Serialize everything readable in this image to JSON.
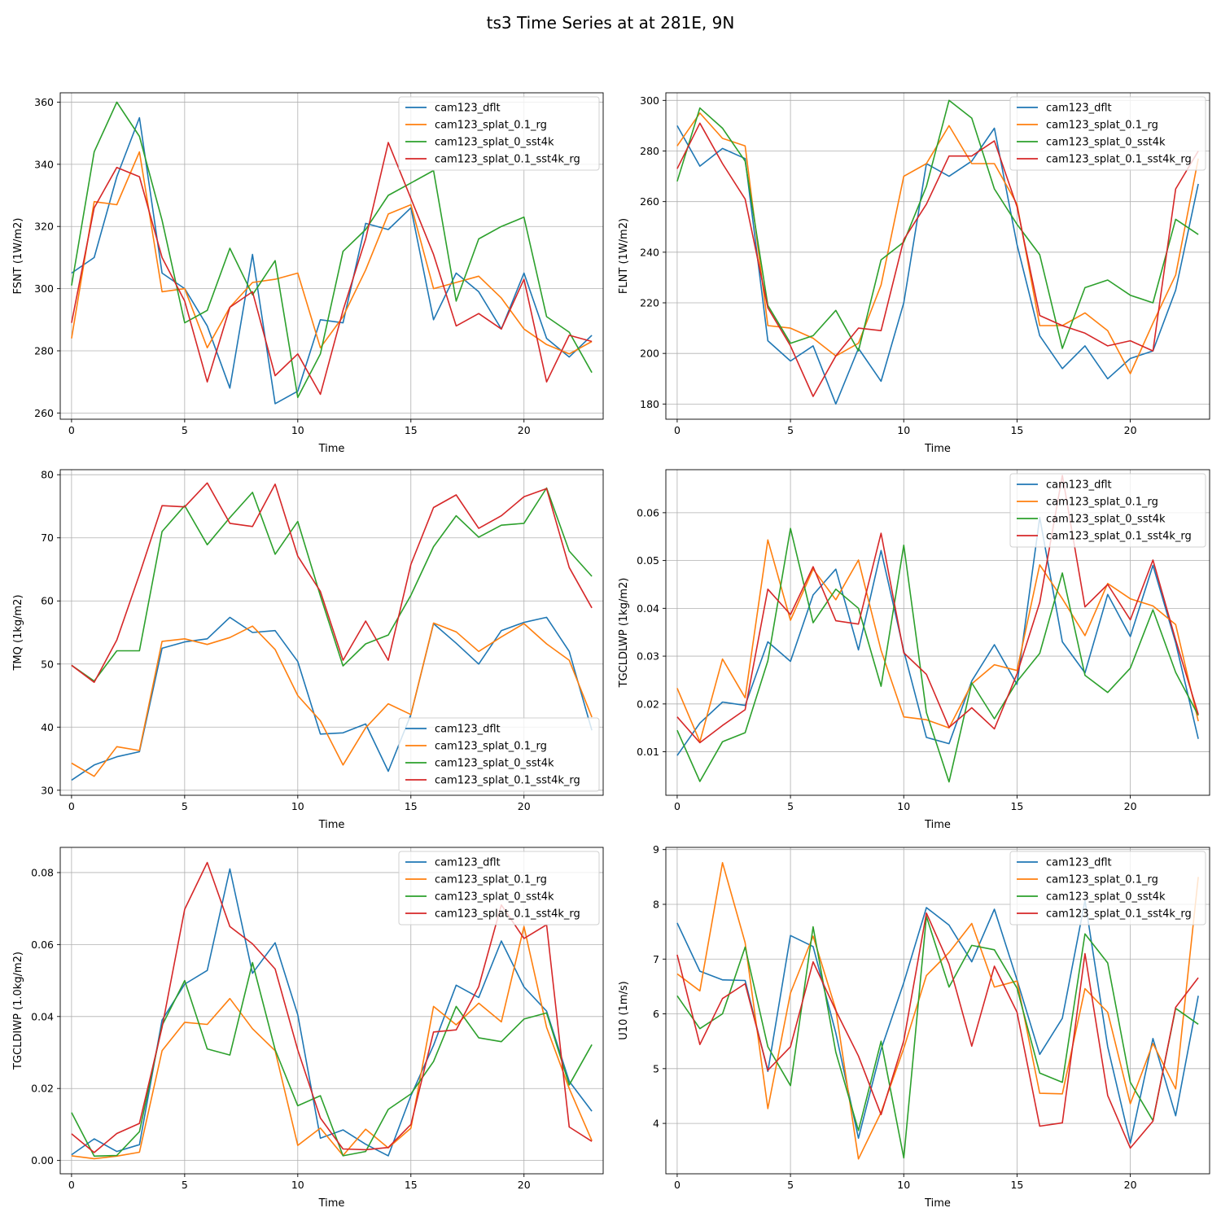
{
  "suptitle": "ts3 Time Series at at 281E, 9N",
  "colors": {
    "cam123_dflt": "#1f77b4",
    "cam123_splat_0.1_rg": "#ff7f0e",
    "cam123_splat_0_sst4k": "#2ca02c",
    "cam123_splat_0.1_sst4k_rg": "#d62728"
  },
  "chart_data": [
    {
      "type": "line",
      "xlabel": "Time",
      "ylabel": "FSNT (1W/m2)",
      "xlim": [
        -0.5,
        23.5
      ],
      "ylim": [
        258,
        363
      ],
      "xticks": [
        0,
        5,
        10,
        15,
        20
      ],
      "yticks": [
        260,
        280,
        300,
        320,
        340,
        360
      ],
      "grid": true,
      "legend": "top-right",
      "series": [
        {
          "name": "cam123_dflt",
          "values": [
            305,
            310,
            336,
            355,
            305,
            300,
            288,
            268,
            311,
            263,
            267,
            290,
            289,
            321,
            319,
            326,
            290,
            305,
            299,
            287,
            305,
            284,
            278,
            285
          ]
        },
        {
          "name": "cam123_splat_0.1_rg",
          "values": [
            284,
            328,
            327,
            344,
            299,
            300,
            281,
            294,
            302,
            303,
            305,
            281,
            291,
            306,
            324,
            327,
            300,
            302,
            304,
            297,
            287,
            282,
            279,
            283
          ]
        },
        {
          "name": "cam123_splat_0_sst4k",
          "values": [
            301,
            344,
            360,
            349,
            322,
            289,
            293,
            313,
            298,
            309,
            265,
            279,
            312,
            319,
            330,
            334,
            338,
            296,
            316,
            320,
            323,
            291,
            286,
            273
          ]
        },
        {
          "name": "cam123_splat_0.1_sst4k_rg",
          "values": [
            289,
            326,
            339,
            336,
            310,
            296,
            270,
            294,
            299,
            272,
            279,
            266,
            293,
            316,
            347,
            329,
            311,
            288,
            292,
            287,
            303,
            270,
            285,
            283
          ]
        }
      ]
    },
    {
      "type": "line",
      "xlabel": "Time",
      "ylabel": "FLNT (1W/m2)",
      "xlim": [
        -0.5,
        23.5
      ],
      "ylim": [
        174,
        303
      ],
      "xticks": [
        0,
        5,
        10,
        15,
        20
      ],
      "yticks": [
        180,
        200,
        220,
        240,
        260,
        280,
        300
      ],
      "grid": true,
      "legend": "top-right",
      "series": [
        {
          "name": "cam123_dflt",
          "values": [
            290,
            274,
            281,
            277,
            205,
            197,
            203,
            180,
            202,
            189,
            220,
            275,
            270,
            276,
            289,
            243,
            207,
            194,
            203,
            190,
            198,
            201,
            225,
            267
          ]
        },
        {
          "name": "cam123_splat_0.1_rg",
          "values": [
            282,
            295,
            285,
            282,
            211,
            210,
            206,
            199,
            204,
            227,
            270,
            275,
            290,
            275,
            275,
            259,
            211,
            211,
            216,
            209,
            192,
            212,
            231,
            277
          ]
        },
        {
          "name": "cam123_splat_0_sst4k",
          "values": [
            268,
            297,
            289,
            276,
            219,
            204,
            207,
            217,
            201,
            237,
            244,
            266,
            300,
            293,
            265,
            251,
            239,
            202,
            226,
            229,
            223,
            220,
            253,
            247
          ]
        },
        {
          "name": "cam123_splat_0.1_sst4k_rg",
          "values": [
            273,
            291,
            275,
            261,
            218,
            203,
            183,
            199,
            210,
            209,
            245,
            259,
            278,
            278,
            284,
            258,
            215,
            211,
            208,
            203,
            205,
            201,
            265,
            280
          ]
        }
      ]
    },
    {
      "type": "line",
      "xlabel": "Time",
      "ylabel": "TMQ (1kg/m2)",
      "xlim": [
        -0.5,
        23.5
      ],
      "ylim": [
        29.2,
        80.8
      ],
      "xticks": [
        0,
        5,
        10,
        15,
        20
      ],
      "yticks": [
        30,
        40,
        50,
        60,
        70,
        80
      ],
      "grid": true,
      "legend": "bottom-right",
      "series": [
        {
          "name": "cam123_dflt",
          "values": [
            31.6,
            34.0,
            35.3,
            36.1,
            52.5,
            53.5,
            54.0,
            57.4,
            55.0,
            55.3,
            50.4,
            38.9,
            39.1,
            40.5,
            33.0,
            42.0,
            56.4,
            53.3,
            50.0,
            55.3,
            56.6,
            57.4,
            52.0,
            39.5
          ]
        },
        {
          "name": "cam123_splat_0.1_rg",
          "values": [
            34.3,
            32.2,
            36.9,
            36.3,
            53.6,
            54.0,
            53.1,
            54.2,
            56.0,
            52.3,
            45.0,
            41.0,
            34.0,
            39.9,
            43.7,
            42.0,
            56.5,
            55.1,
            52.0,
            54.3,
            56.4,
            53.2,
            50.6,
            41.6
          ]
        },
        {
          "name": "cam123_splat_0_sst4k",
          "values": [
            49.8,
            47.3,
            52.1,
            52.1,
            71.0,
            75.1,
            68.9,
            73.2,
            77.2,
            67.4,
            72.6,
            60.8,
            49.7,
            53.2,
            54.6,
            60.9,
            68.6,
            73.5,
            70.1,
            72.0,
            72.3,
            77.9,
            67.9,
            63.9
          ]
        },
        {
          "name": "cam123_splat_0.1_sst4k_rg",
          "values": [
            49.8,
            47.1,
            53.8,
            64.2,
            75.1,
            74.9,
            78.7,
            72.3,
            71.8,
            78.5,
            67.1,
            61.5,
            50.6,
            56.8,
            50.6,
            65.8,
            74.8,
            76.8,
            71.5,
            73.5,
            76.5,
            77.8,
            65.3,
            58.9
          ]
        }
      ]
    },
    {
      "type": "line",
      "xlabel": "Time",
      "ylabel": "TGCLDLWP (1kg/m2)",
      "xlim": [
        -0.5,
        23.5
      ],
      "ylim": [
        0.0009,
        0.069
      ],
      "xticks": [
        0,
        5,
        10,
        15,
        20
      ],
      "yticks": [
        0.01,
        0.02,
        0.03,
        0.04,
        0.05,
        0.06
      ],
      "ytick_labels": [
        "0.01",
        "0.02",
        "0.03",
        "0.04",
        "0.05",
        "0.06"
      ],
      "grid": true,
      "legend": "top-right",
      "series": [
        {
          "name": "cam123_dflt",
          "values": [
            0.0092,
            0.016,
            0.0204,
            0.0197,
            0.033,
            0.0289,
            0.0428,
            0.0482,
            0.0313,
            0.0521,
            0.0311,
            0.013,
            0.0117,
            0.0248,
            0.0324,
            0.0241,
            0.059,
            0.033,
            0.0265,
            0.0429,
            0.0341,
            0.049,
            0.0328,
            0.0127
          ]
        },
        {
          "name": "cam123_splat_0.1_rg",
          "values": [
            0.0233,
            0.0121,
            0.0294,
            0.0213,
            0.0543,
            0.0375,
            0.0482,
            0.0418,
            0.0501,
            0.0312,
            0.0173,
            0.0167,
            0.015,
            0.0242,
            0.0282,
            0.027,
            0.0491,
            0.042,
            0.0343,
            0.0452,
            0.042,
            0.0405,
            0.0366,
            0.0164
          ]
        },
        {
          "name": "cam123_splat_0_sst4k",
          "values": [
            0.0145,
            0.0038,
            0.0121,
            0.014,
            0.029,
            0.0567,
            0.037,
            0.044,
            0.04,
            0.0237,
            0.0532,
            0.0182,
            0.0037,
            0.0244,
            0.0169,
            0.0247,
            0.0306,
            0.0474,
            0.026,
            0.0224,
            0.0275,
            0.0397,
            0.0266,
            0.0176
          ]
        },
        {
          "name": "cam123_splat_0.1_sst4k_rg",
          "values": [
            0.0173,
            0.0119,
            0.0155,
            0.0188,
            0.044,
            0.0387,
            0.0487,
            0.0374,
            0.0367,
            0.0557,
            0.0307,
            0.0262,
            0.0151,
            0.0192,
            0.0148,
            0.0263,
            0.0412,
            0.0678,
            0.0403,
            0.045,
            0.0376,
            0.0501,
            0.0334,
            0.0178
          ]
        }
      ]
    },
    {
      "type": "line",
      "xlabel": "Time",
      "ylabel": "TGCLDIWP (1.0kg/m2)",
      "xlim": [
        -0.5,
        23.5
      ],
      "ylim": [
        -0.0037,
        0.087
      ],
      "xticks": [
        0,
        5,
        10,
        15,
        20
      ],
      "yticks": [
        0.0,
        0.02,
        0.04,
        0.06,
        0.08
      ],
      "ytick_labels": [
        "0.00",
        "0.02",
        "0.04",
        "0.06",
        "0.08"
      ],
      "grid": true,
      "legend": "top-right",
      "series": [
        {
          "name": "cam123_dflt",
          "values": [
            0.0016,
            0.006,
            0.0025,
            0.0044,
            0.039,
            0.049,
            0.0528,
            0.081,
            0.052,
            0.0605,
            0.0405,
            0.0062,
            0.0085,
            0.0045,
            0.0013,
            0.018,
            0.032,
            0.0487,
            0.0453,
            0.061,
            0.0482,
            0.0415,
            0.022,
            0.0137
          ]
        },
        {
          "name": "cam123_splat_0.1_rg",
          "values": [
            0.0013,
            0.0005,
            0.0012,
            0.0023,
            0.0305,
            0.0384,
            0.0378,
            0.045,
            0.0366,
            0.0305,
            0.0042,
            0.009,
            0.0014,
            0.0087,
            0.0035,
            0.009,
            0.0428,
            0.0377,
            0.0437,
            0.0385,
            0.065,
            0.037,
            0.02,
            0.0055
          ]
        },
        {
          "name": "cam123_splat_0_sst4k",
          "values": [
            0.0133,
            0.0012,
            0.0014,
            0.008,
            0.0375,
            0.05,
            0.031,
            0.0293,
            0.055,
            0.0308,
            0.0152,
            0.018,
            0.0013,
            0.0025,
            0.0142,
            0.0185,
            0.0275,
            0.0428,
            0.0341,
            0.033,
            0.0393,
            0.041,
            0.021,
            0.0322
          ]
        },
        {
          "name": "cam123_splat_0.1_sst4k_rg",
          "values": [
            0.0074,
            0.0022,
            0.0075,
            0.0103,
            0.037,
            0.0698,
            0.0828,
            0.065,
            0.0602,
            0.0532,
            0.0307,
            0.0118,
            0.0032,
            0.003,
            0.0036,
            0.01,
            0.0357,
            0.0363,
            0.0483,
            0.071,
            0.0617,
            0.0655,
            0.0093,
            0.0053
          ]
        }
      ]
    },
    {
      "type": "line",
      "xlabel": "Time",
      "ylabel": "U10 (1m/s)",
      "xlim": [
        -0.5,
        23.5
      ],
      "ylim": [
        3.08,
        9.04
      ],
      "xticks": [
        0,
        5,
        10,
        15,
        20
      ],
      "yticks": [
        4,
        5,
        6,
        7,
        8,
        9
      ],
      "grid": true,
      "legend": "top-right",
      "series": [
        {
          "name": "cam123_dflt",
          "values": [
            7.66,
            6.78,
            6.62,
            6.61,
            4.95,
            7.43,
            7.23,
            5.65,
            3.73,
            5.35,
            6.57,
            7.94,
            7.62,
            6.95,
            7.91,
            6.62,
            5.26,
            5.92,
            8.07,
            5.4,
            3.64,
            5.55,
            4.14,
            6.33
          ]
        },
        {
          "name": "cam123_splat_0.1_rg",
          "values": [
            6.73,
            6.42,
            8.76,
            7.3,
            4.27,
            6.38,
            7.42,
            6.08,
            3.35,
            4.2,
            5.37,
            6.7,
            7.12,
            7.65,
            6.49,
            6.6,
            4.55,
            4.54,
            6.46,
            6.03,
            4.36,
            5.46,
            4.63,
            8.5
          ]
        },
        {
          "name": "cam123_splat_0_sst4k",
          "values": [
            6.33,
            5.73,
            6.0,
            7.22,
            5.4,
            4.69,
            7.59,
            5.3,
            3.87,
            5.5,
            3.37,
            7.78,
            6.49,
            7.25,
            7.17,
            6.47,
            4.92,
            4.75,
            7.46,
            6.93,
            4.75,
            4.05,
            6.1,
            5.81
          ]
        },
        {
          "name": "cam123_splat_0.1_sst4k_rg",
          "values": [
            7.08,
            5.44,
            6.28,
            6.55,
            4.97,
            5.4,
            6.95,
            6.06,
            5.23,
            4.16,
            5.51,
            7.84,
            6.91,
            5.41,
            6.87,
            6.03,
            3.95,
            4.01,
            7.1,
            4.51,
            3.55,
            4.04,
            6.12,
            6.66
          ]
        }
      ]
    }
  ]
}
